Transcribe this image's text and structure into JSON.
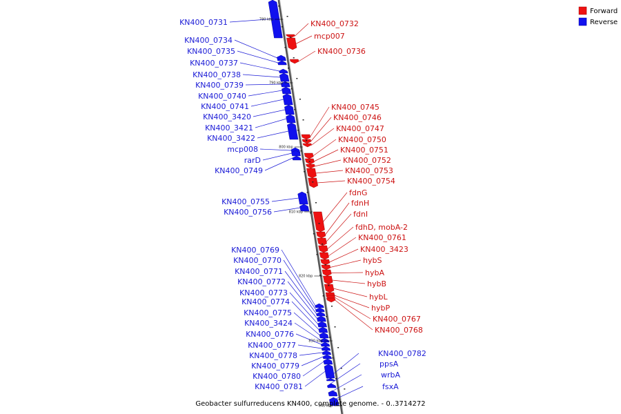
{
  "legend": {
    "forward_label": "Forward",
    "reverse_label": "Reverse",
    "forward_color": "#ee1111",
    "reverse_color": "#1111ee"
  },
  "footer_caption": "Geobacter sulfurreducens KN400, complete genome. - 0..3714272",
  "ticks": [
    "780 kbp",
    "790 kbp",
    "800 kbp",
    "810 kbp",
    "820 kbp",
    "830 kbp",
    "840 kbp"
  ],
  "forward_genes": [
    "KN400_0732",
    "mcp007",
    "KN400_0736",
    "KN400_0745",
    "KN400_0746",
    "KN400_0747",
    "KN400_0750",
    "KN400_0751",
    "KN400_0752",
    "KN400_0753",
    "KN400_0754",
    "fdnG",
    "fdnH",
    "fdnI",
    "fdhD, mobA-2",
    "KN400_0761",
    "KN400_3423",
    "hybS",
    "hybA",
    "hybB",
    "hybL",
    "hybP",
    "KN400_0767",
    "KN400_0768"
  ],
  "reverse_genes": [
    "KN400_0731",
    "KN400_0734",
    "KN400_0735",
    "KN400_0737",
    "KN400_0738",
    "KN400_0739",
    "KN400_0740",
    "KN400_0741",
    "KN400_3420",
    "KN400_3421",
    "KN400_3422",
    "mcp008",
    "rarD",
    "KN400_0749",
    "KN400_0755",
    "KN400_0756",
    "KN400_0769",
    "KN400_0770",
    "KN400_0771",
    "KN400_0772",
    "KN400_0773",
    "KN400_0774",
    "KN400_0775",
    "KN400_3424",
    "KN400_0776",
    "KN400_0777",
    "KN400_0778",
    "KN400_0779",
    "KN400_0780",
    "KN400_0781",
    "KN400_0782",
    "ppsA",
    "wrbA",
    "fsxA"
  ]
}
